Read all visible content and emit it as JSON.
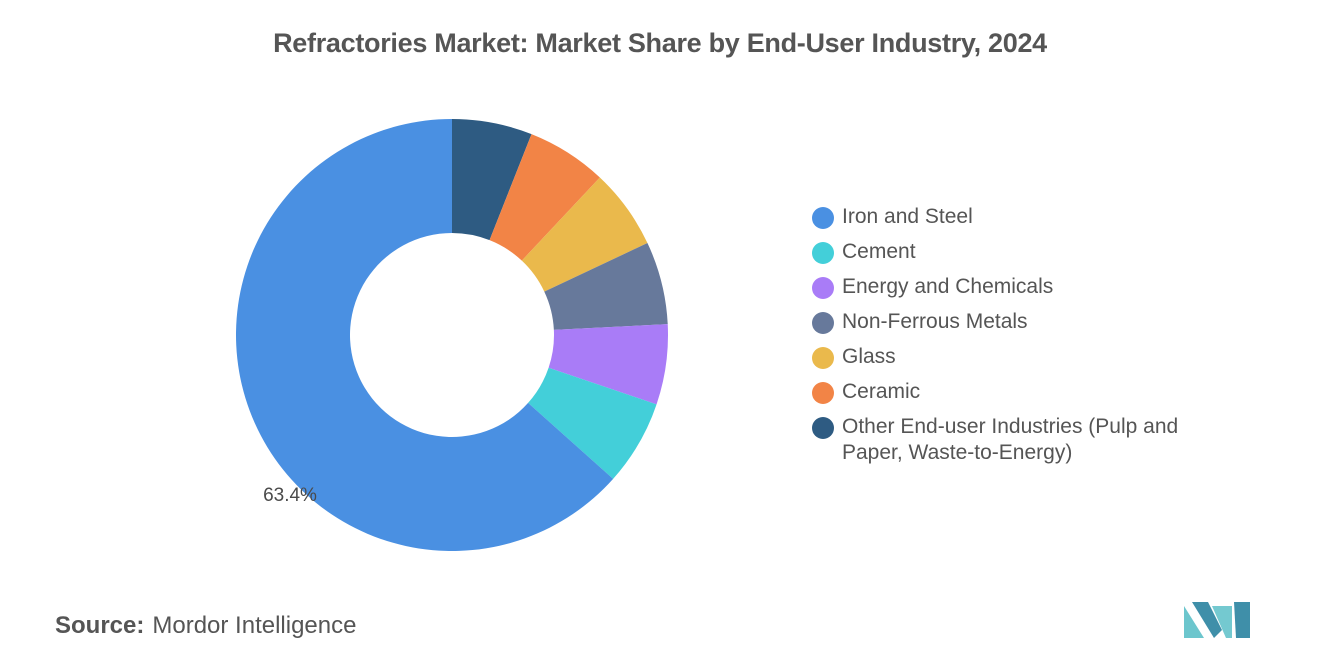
{
  "title": "Refractories Market: Market Share by End-User Industry, 2024",
  "source": {
    "label": "Source:",
    "value": "Mordor Intelligence"
  },
  "logo": {
    "icon": "mordor-intelligence-logo",
    "color": "#5cc0c8"
  },
  "chart_data": {
    "type": "pie",
    "style": "donut",
    "legend_position": "right",
    "series": [
      {
        "label": "Iron and Steel",
        "value": 63.4,
        "color": "#4a90e2",
        "display_label": "63.4%"
      },
      {
        "label": "Cement",
        "value": 6.4,
        "color": "#43cfd9",
        "display_label": ""
      },
      {
        "label": "Energy and Chemicals",
        "value": 6.0,
        "color": "#a97cf7",
        "display_label": ""
      },
      {
        "label": "Non-Ferrous Metals",
        "value": 6.2,
        "color": "#67799b",
        "display_label": ""
      },
      {
        "label": "Glass",
        "value": 6.0,
        "color": "#eab94c",
        "display_label": ""
      },
      {
        "label": "Ceramic",
        "value": 6.0,
        "color": "#f28446",
        "display_label": ""
      },
      {
        "label": "Other End-user Industries (Pulp and Paper, Waste-to-Energy)",
        "value": 6.0,
        "color": "#2e5b82",
        "display_label": ""
      }
    ]
  }
}
